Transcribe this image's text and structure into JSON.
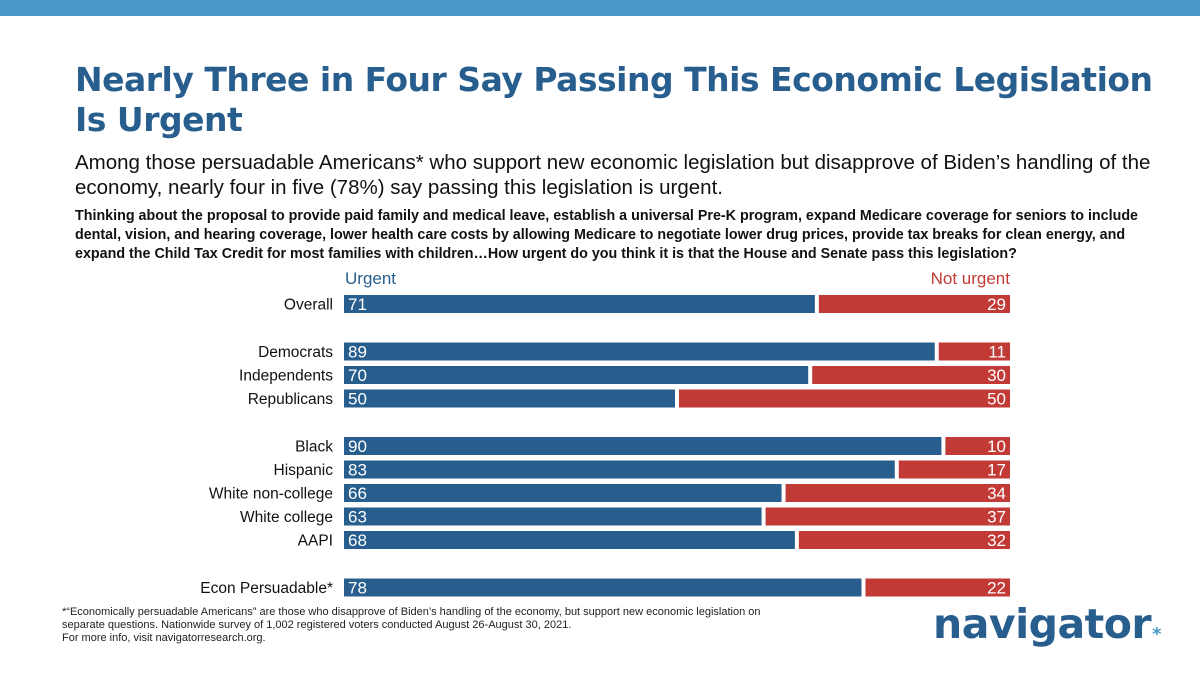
{
  "header": {
    "title": "Nearly Three in Four Say Passing This Economic Legislation Is Urgent",
    "subtitle": "Among those persuadable Americans* who support new economic legislation but disapprove of Biden’s handling of the economy, nearly four in five (78%) say passing this legislation is urgent.",
    "question": "Thinking about the proposal to provide paid family and medical leave, establish a universal Pre-K program, expand Medicare coverage for seniors to include dental, vision, and hearing coverage, lower health care costs by allowing Medicare to negotiate lower drug prices, provide tax breaks for clean energy, and expand the Child Tax Credit for most families with children…How urgent do you think it is that the House and Senate pass this legislation?"
  },
  "colors": {
    "top_bar": "#4a97c9",
    "urgent": "#285e8e",
    "not_urgent": "#c23a35",
    "title": "#285e8e"
  },
  "chart_data": {
    "type": "bar",
    "orientation": "horizontal-stacked",
    "title": "",
    "xlabel": "",
    "ylabel": "",
    "xlim": [
      0,
      100
    ],
    "legend": [
      "Urgent",
      "Not urgent"
    ],
    "legend_placement": "top",
    "categories": [
      "Overall",
      "Democrats",
      "Independents",
      "Republicans",
      "Black",
      "Hispanic",
      "White non-college",
      "White college",
      "AAPI",
      "Econ Persuadable*"
    ],
    "groups": [
      [
        "Overall"
      ],
      [
        "Democrats",
        "Independents",
        "Republicans"
      ],
      [
        "Black",
        "Hispanic",
        "White non-college",
        "White college",
        "AAPI"
      ],
      [
        "Econ Persuadable*"
      ]
    ],
    "series": [
      {
        "name": "Urgent",
        "values": [
          71,
          89,
          70,
          50,
          90,
          83,
          66,
          63,
          68,
          78
        ]
      },
      {
        "name": "Not urgent",
        "values": [
          29,
          11,
          30,
          50,
          10,
          17,
          34,
          37,
          32,
          22
        ]
      }
    ]
  },
  "footer": {
    "footnote_line1": "*“Economically persuadable Americans” are those who disapprove of Biden’s handling of the economy, but support new economic legislation on separate questions. Nationwide survey of 1,002 registered voters conducted August 26-August 30, 2021.",
    "footnote_line2": "For more info, visit navigatorresearch.org.",
    "logo_text": "navigator",
    "logo_mark": "*"
  }
}
